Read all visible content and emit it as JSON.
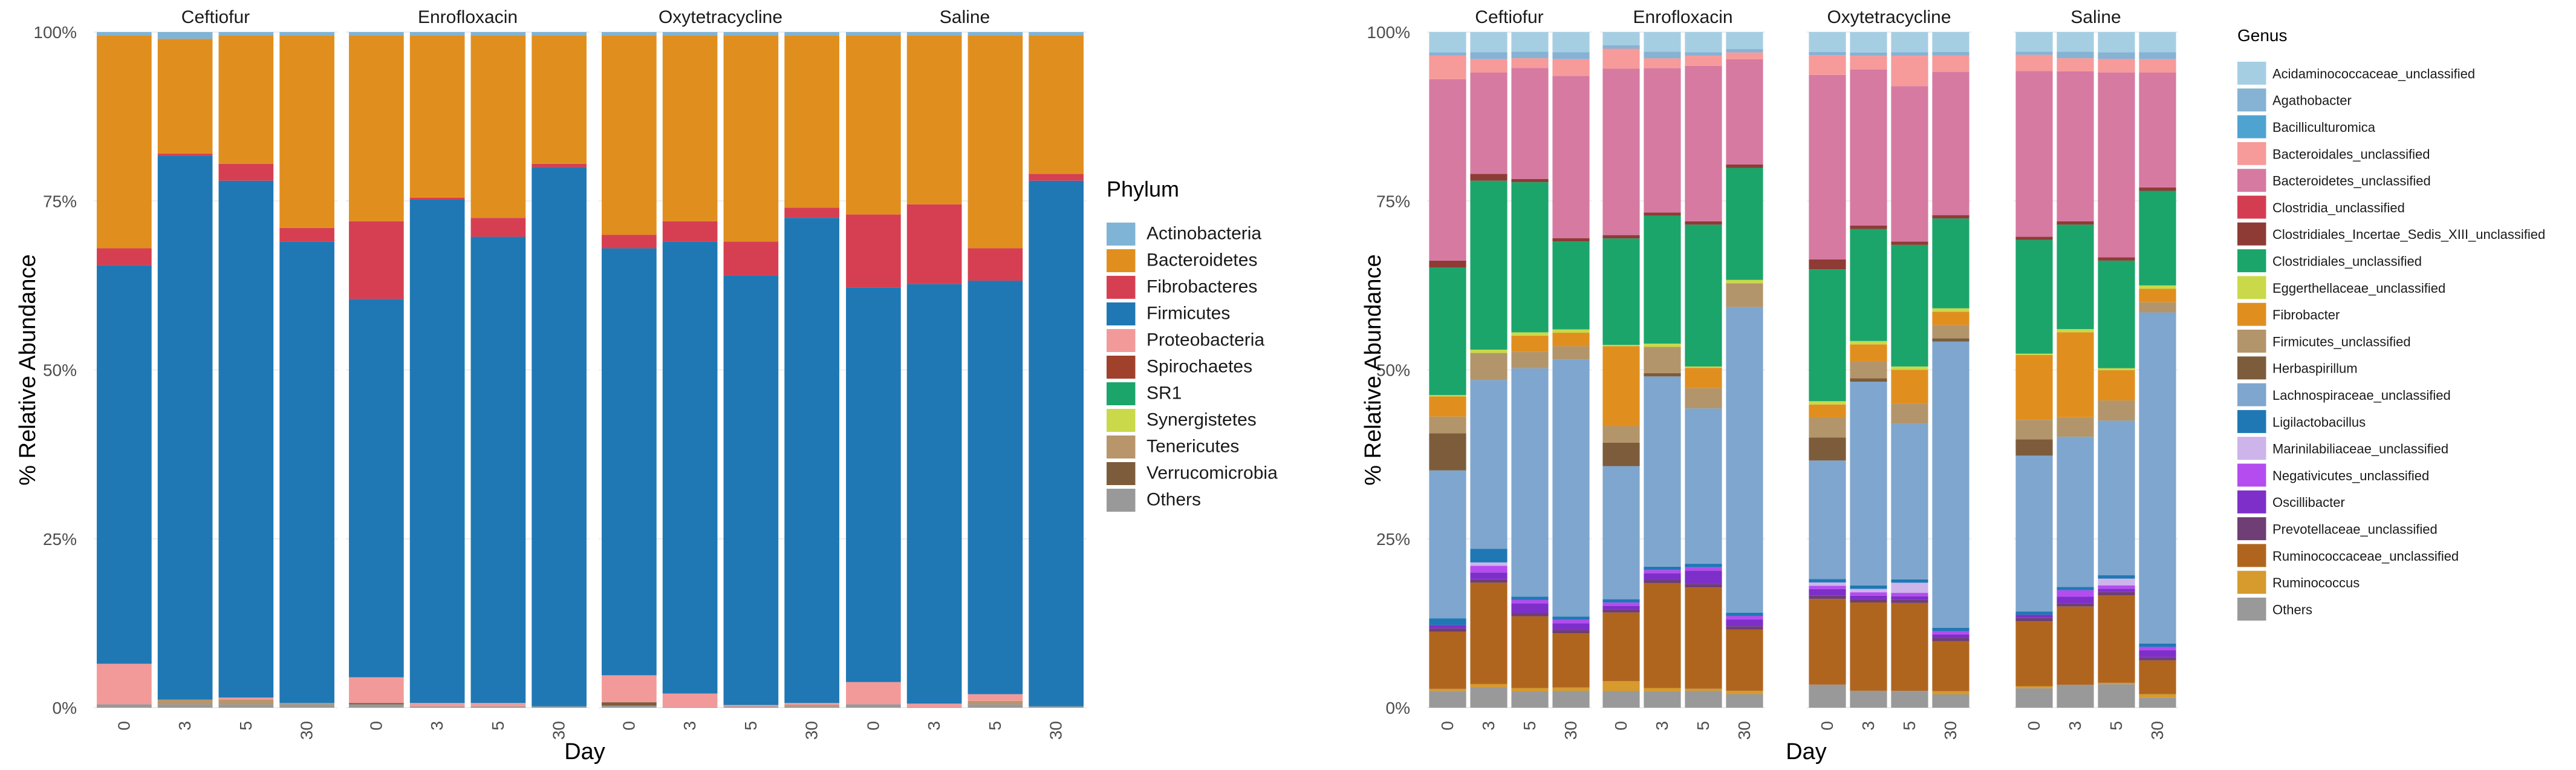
{
  "chart_data": [
    {
      "type": "bar",
      "stacked": true,
      "ylabel": "% Relative Abundance",
      "xlabel": "Day",
      "ylim": [
        0,
        100
      ],
      "y_ticks": [
        "0%",
        "25%",
        "50%",
        "75%",
        "100%"
      ],
      "legend_title": "Phylum",
      "legend_position": "right",
      "facets": [
        "Ceftiofur",
        "Enrofloxacin",
        "Oxytetracycline",
        "Saline"
      ],
      "categories": [
        "0",
        "3",
        "5",
        "30"
      ],
      "series_names": [
        "Actinobacteria",
        "Bacteroidetes",
        "Fibrobacteres",
        "Firmicutes",
        "Proteobacteria",
        "Spirochaetes",
        "SR1",
        "Synergistetes",
        "Tenericutes",
        "Verrucomicrobia",
        "Others"
      ],
      "colors": [
        "#7fb4d6",
        "#e08f1f",
        "#d63f52",
        "#1f78b4",
        "#f29a9a",
        "#a0412c",
        "#1ba56b",
        "#c9d94a",
        "#b8956b",
        "#7d5c3b",
        "#999999"
      ],
      "data": {
        "Ceftiofur": [
          [
            0.5,
            31.5,
            2.5,
            59,
            6,
            0,
            0,
            0,
            0,
            0,
            0.5
          ],
          [
            1.0,
            17.0,
            0.3,
            80.5,
            0,
            0,
            0,
            0,
            0.7,
            0,
            0.5
          ],
          [
            0.5,
            19.0,
            2.5,
            76.5,
            0.3,
            0,
            0,
            0,
            0.7,
            0,
            0.5
          ],
          [
            0.5,
            28.5,
            2.0,
            68.3,
            0,
            0,
            0,
            0,
            0.2,
            0,
            0.5
          ]
        ],
        "Enrofloxacin": [
          [
            0.5,
            27.5,
            11.5,
            56,
            3.8,
            0,
            0,
            0,
            0,
            0.2,
            0.5
          ],
          [
            0.5,
            24.0,
            0.3,
            74.5,
            0.5,
            0,
            0,
            0,
            0,
            0,
            0.2
          ],
          [
            0.5,
            27.0,
            2.8,
            69,
            0.5,
            0,
            0,
            0,
            0,
            0,
            0.2
          ],
          [
            0.5,
            19.0,
            0.5,
            79.8,
            0,
            0,
            0,
            0,
            0,
            0,
            0.2
          ]
        ],
        "Oxytetracycline": [
          [
            0.5,
            29.5,
            2.0,
            63.2,
            4.0,
            0,
            0,
            0,
            0,
            0.5,
            0.3
          ],
          [
            0.5,
            27.5,
            3.0,
            66.9,
            2.0,
            0,
            0,
            0,
            0,
            0,
            0.1
          ],
          [
            0.5,
            30.5,
            5.0,
            63.6,
            0.2,
            0,
            0,
            0,
            0,
            0,
            0.2
          ],
          [
            0.5,
            25.5,
            1.5,
            71.8,
            0.3,
            0,
            0,
            0,
            0.2,
            0,
            0.2
          ]
        ],
        "Saline": [
          [
            0.5,
            26.5,
            10.8,
            58.4,
            3.3,
            0,
            0,
            0,
            0,
            0,
            0.5
          ],
          [
            0.5,
            25.0,
            11.8,
            62.1,
            0.5,
            0,
            0,
            0,
            0,
            0,
            0.1
          ],
          [
            0.5,
            31.5,
            4.8,
            61.2,
            1.0,
            0,
            0,
            0,
            0.5,
            0,
            0.5
          ],
          [
            0.5,
            20.5,
            1.0,
            77.8,
            0,
            0,
            0,
            0,
            0,
            0,
            0.2
          ]
        ]
      }
    },
    {
      "type": "bar",
      "stacked": true,
      "ylabel": "% Relative Abundance",
      "xlabel": "Day",
      "ylim": [
        0,
        100
      ],
      "y_ticks": [
        "0%",
        "25%",
        "50%",
        "75%",
        "100%"
      ],
      "legend_title": "Genus",
      "legend_position": "right",
      "facets": [
        "Ceftiofur",
        "Enrofloxacin",
        "Oxytetracycline",
        "Saline"
      ],
      "categories": [
        "0",
        "3",
        "5",
        "30"
      ],
      "series_names": [
        "Acidaminococcaceae_unclassified",
        "Agathobacter",
        "Bacilliculturomica",
        "Bacteroidales_unclassified",
        "Bacteroidetes_unclassified",
        "Clostridia_unclassified",
        "Clostridiales_Incertae_Sedis_XIII_unclassified",
        "Clostridiales_unclassified",
        "Eggerthellaceae_unclassified",
        "Fibrobacter",
        "Firmicutes_unclassified",
        "Herbaspirillum",
        "Lachnospiraceae_unclassified",
        "Ligilactobacillus",
        "Marinilabiliaceae_unclassified",
        "Negativicutes_unclassified",
        "Oscillibacter",
        "Prevotellaceae_unclassified",
        "Ruminococcaceae_unclassified",
        "Ruminococcus",
        "Others"
      ],
      "colors": [
        "#a6cee3",
        "#86b2d4",
        "#4fa3d1",
        "#f79a9a",
        "#d67aa1",
        "#d43d51",
        "#8e3b36",
        "#1ba56b",
        "#c9d94a",
        "#e08f1f",
        "#b3956b",
        "#7d5c3b",
        "#7ea6cf",
        "#1f78b4",
        "#cdb4ea",
        "#b44cf0",
        "#7e2fc9",
        "#6f3e74",
        "#b0651f",
        "#d69a2d",
        "#999999"
      ],
      "data": {
        "Ceftiofur": [
          [
            3,
            0.5,
            0,
            3.5,
            27,
            0,
            1,
            19,
            0.2,
            3,
            2.5,
            5.5,
            22,
            1,
            0,
            0,
            0.5,
            0.5,
            8.5,
            0.3,
            2.5
          ],
          [
            3,
            1,
            0,
            2,
            15,
            0,
            1,
            25,
            0.5,
            0,
            4,
            0,
            25,
            2,
            0.5,
            1,
            1,
            0.5,
            15,
            0.5,
            3
          ],
          [
            3,
            1,
            0,
            1.5,
            17,
            0,
            0.5,
            23,
            0.5,
            2.5,
            2.5,
            0,
            35,
            0.5,
            0,
            0.5,
            1.5,
            0.5,
            11,
            0.5,
            2.5
          ],
          [
            3,
            1,
            0,
            2.5,
            24,
            0,
            0.5,
            13,
            0.5,
            2,
            2,
            0,
            38,
            0.5,
            0,
            0.5,
            1,
            0.5,
            8,
            0.5,
            2.5
          ]
        ],
        "Enrofloxacin": [
          [
            2,
            0.5,
            0,
            3,
            25,
            0,
            0.5,
            16,
            0.2,
            12,
            2.5,
            3.5,
            20,
            0.5,
            0,
            0.5,
            0.5,
            0.5,
            10.3,
            1.5,
            2.5
          ],
          [
            3,
            1,
            0,
            1.5,
            22,
            0,
            0.5,
            19.5,
            0.5,
            0,
            4,
            0.5,
            29,
            0.5,
            0,
            0.5,
            1,
            0.5,
            16,
            0.5,
            2.5
          ],
          [
            3,
            0.5,
            0,
            1.5,
            23,
            0,
            0.5,
            21,
            0.2,
            3,
            3,
            0,
            23,
            0.5,
            0,
            0.5,
            2,
            0.5,
            15,
            0.3,
            2.5
          ],
          [
            2.5,
            0.5,
            0,
            1,
            15.5,
            0,
            0.5,
            16.5,
            0.5,
            0,
            3.5,
            0,
            45,
            0.5,
            0,
            0.5,
            1,
            0.5,
            9,
            0.5,
            2
          ]
        ],
        "Oxytetracycline": [
          [
            3,
            0.5,
            0,
            3,
            28,
            0,
            1.5,
            20,
            0.5,
            2,
            3,
            3.5,
            18,
            0.5,
            0.5,
            0.5,
            1,
            0.5,
            13,
            0,
            3.5
          ],
          [
            3,
            0.5,
            0,
            2,
            23,
            0,
            0.5,
            16.5,
            0.5,
            2.5,
            2.5,
            0.5,
            30,
            0.5,
            0.5,
            0.5,
            0.5,
            0.5,
            13,
            0,
            2.5
          ],
          [
            3,
            0.5,
            0,
            4.5,
            23,
            0,
            0.5,
            18,
            0.5,
            5,
            3,
            0,
            23,
            0.5,
            1.5,
            0.5,
            0.5,
            0.5,
            13,
            0,
            2.5
          ],
          [
            3,
            0.5,
            0,
            2.5,
            21.5,
            0,
            0.5,
            13.5,
            0.5,
            2,
            2,
            0.5,
            43,
            0.5,
            0,
            0.5,
            0.5,
            0.5,
            7.5,
            0.5,
            2
          ]
        ],
        "Saline": [
          [
            3,
            0.5,
            0,
            2.5,
            25.5,
            0,
            0.5,
            17.5,
            0.2,
            10,
            3,
            2.5,
            24,
            0.5,
            0,
            0,
            0.5,
            0.5,
            10,
            0.3,
            3
          ],
          [
            3,
            1,
            0,
            2,
            23,
            0,
            0.5,
            16,
            0.5,
            13,
            3,
            0,
            23,
            0.5,
            0,
            1,
            1,
            0.5,
            12,
            0,
            3.5
          ],
          [
            3,
            1,
            0,
            2,
            27.5,
            0,
            0.5,
            16,
            0.3,
            4.5,
            3,
            0,
            23,
            0.5,
            1,
            0.5,
            0.5,
            0.5,
            13,
            0.2,
            3.5
          ],
          [
            3,
            1,
            0,
            2,
            17,
            0,
            0.5,
            14,
            0.5,
            2,
            1.5,
            0,
            49,
            0.5,
            0,
            0.5,
            1,
            0.5,
            5,
            0.5,
            1.5
          ]
        ]
      }
    }
  ]
}
